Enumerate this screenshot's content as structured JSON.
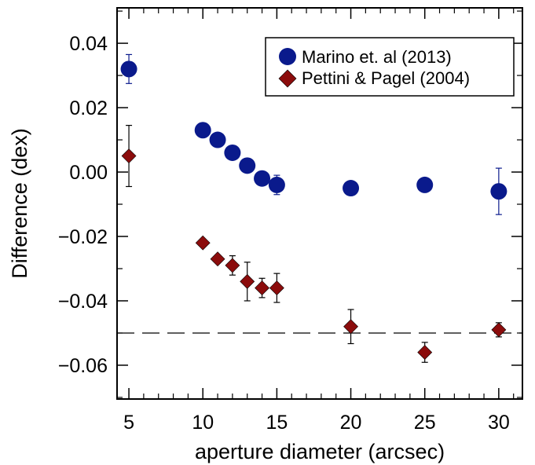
{
  "chart_data": {
    "type": "scatter",
    "xlabel": "aperture diameter (arcsec)",
    "ylabel": "Difference (dex)",
    "xlim": [
      4.2,
      31.6
    ],
    "ylim": [
      -0.0705,
      0.051
    ],
    "xticks": [
      5,
      10,
      15,
      20,
      25,
      30
    ],
    "xtick_labels": [
      "5",
      "10",
      "15",
      "20",
      "25",
      "30"
    ],
    "yticks": [
      0.04,
      0.02,
      0.0,
      -0.02,
      -0.04,
      -0.06
    ],
    "ytick_labels": [
      "0.04",
      "0.02",
      "0.00",
      "−0.02",
      "−0.04",
      "−0.06"
    ],
    "reference_line": {
      "y": -0.05,
      "style": "dashed"
    },
    "grid": false,
    "legend_position": "top-right",
    "series": [
      {
        "name": "Marino et. al (2013)",
        "marker": "circle",
        "color": "#0a1a8c",
        "points": [
          {
            "x": 5,
            "y": 0.032,
            "err": 0.0045
          },
          {
            "x": 10,
            "y": 0.013
          },
          {
            "x": 11,
            "y": 0.01
          },
          {
            "x": 12,
            "y": 0.006
          },
          {
            "x": 13,
            "y": 0.002
          },
          {
            "x": 14,
            "y": -0.002
          },
          {
            "x": 15,
            "y": -0.004,
            "err": 0.003
          },
          {
            "x": 20,
            "y": -0.005
          },
          {
            "x": 25,
            "y": -0.004
          },
          {
            "x": 30,
            "y": -0.006,
            "err": 0.0072
          }
        ]
      },
      {
        "name": "Pettini & Pagel (2004)",
        "marker": "diamond",
        "color": "#8b0c0c",
        "points": [
          {
            "x": 5,
            "y": 0.005,
            "err": 0.0095
          },
          {
            "x": 10,
            "y": -0.022,
            "err": 0.001
          },
          {
            "x": 11,
            "y": -0.027,
            "err": 0.001
          },
          {
            "x": 12,
            "y": -0.029,
            "err": 0.003
          },
          {
            "x": 13,
            "y": -0.034,
            "err": 0.006
          },
          {
            "x": 14,
            "y": -0.036,
            "err": 0.003
          },
          {
            "x": 15,
            "y": -0.036,
            "err": 0.0045
          },
          {
            "x": 20,
            "y": -0.048,
            "err": 0.0053
          },
          {
            "x": 25,
            "y": -0.056,
            "err": 0.0031
          },
          {
            "x": 30,
            "y": -0.049,
            "err": 0.0022
          }
        ]
      }
    ]
  }
}
